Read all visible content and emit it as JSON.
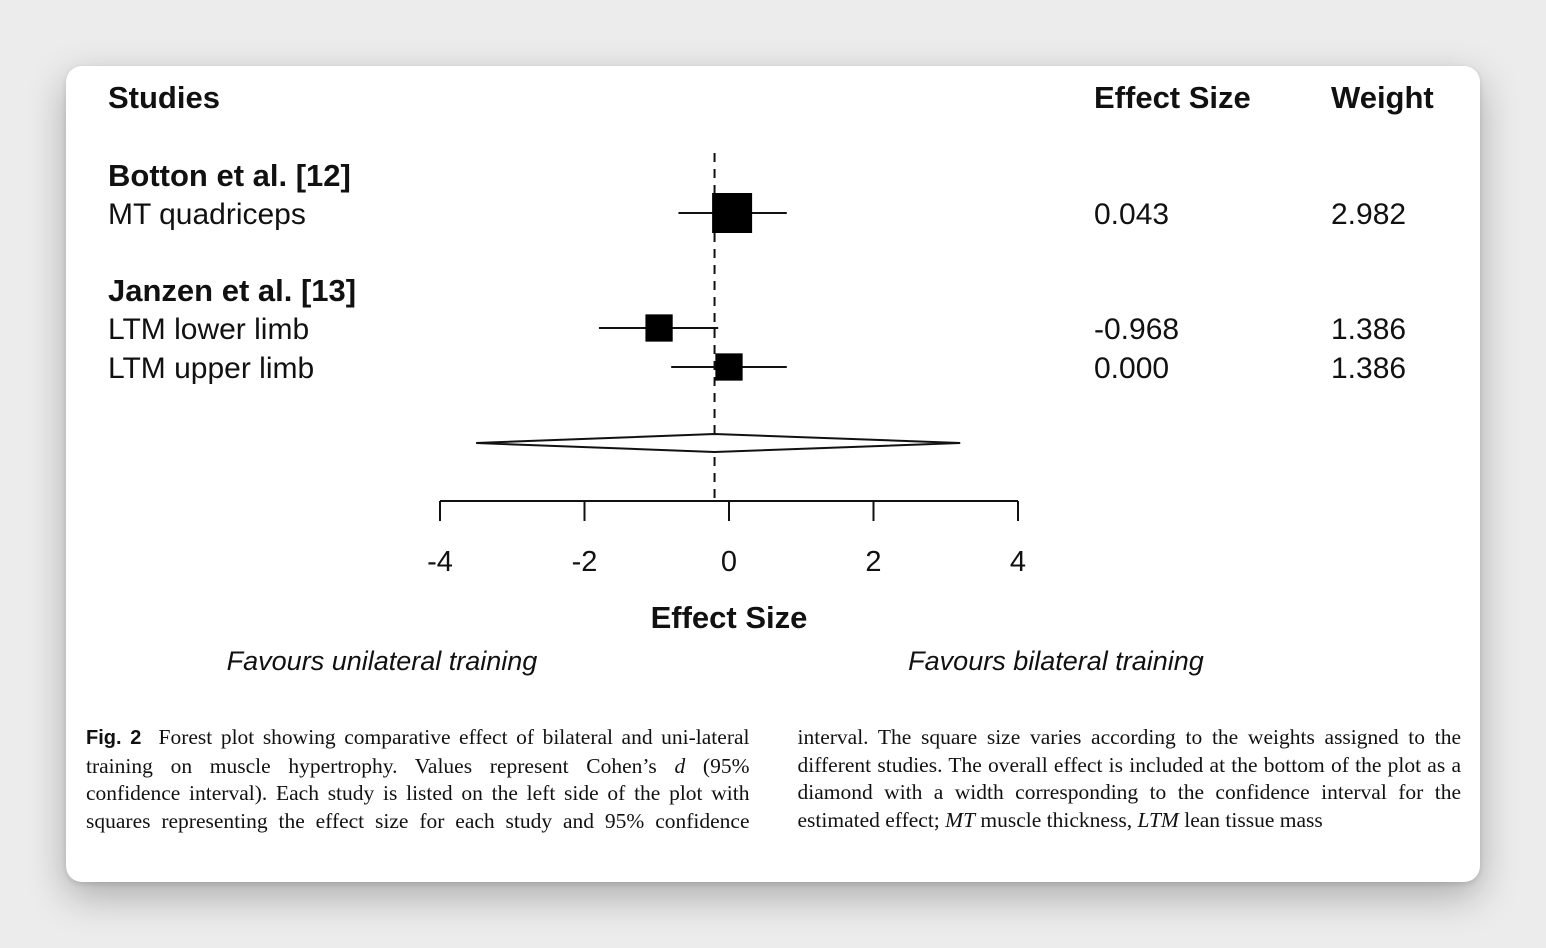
{
  "chart_data": {
    "type": "forest",
    "headers": {
      "studies": "Studies",
      "effect_size": "Effect Size",
      "weight": "Weight"
    },
    "null_line": 0,
    "xlim": [
      -4,
      4
    ],
    "xticks": [
      "-4",
      "-2",
      "0",
      "2",
      "4"
    ],
    "xlabel": "Effect Size",
    "favours_left": "Favours unilateral training",
    "favours_right": "Favours bilateral training",
    "studies": [
      {
        "name": "Botton et al. [12]",
        "outcomes": [
          {
            "label": "MT quadriceps",
            "effect": 0.043,
            "effect_text": "0.043",
            "ci": [
              -0.7,
              0.8
            ],
            "weight": 2.982,
            "weight_text": "2.982"
          }
        ]
      },
      {
        "name": "Janzen et al. [13]",
        "outcomes": [
          {
            "label": "LTM lower limb",
            "effect": -0.968,
            "effect_text": "-0.968",
            "ci": [
              -1.8,
              -0.15
            ],
            "weight": 1.386,
            "weight_text": "1.386"
          },
          {
            "label": "LTM upper limb",
            "effect": 0.0,
            "effect_text": "0.000",
            "ci": [
              -0.8,
              0.8
            ],
            "weight": 1.386,
            "weight_text": "1.386"
          }
        ]
      }
    ],
    "overall": {
      "effect": -0.2,
      "ci": [
        -3.5,
        3.2
      ]
    }
  },
  "caption": {
    "fig_label": "Fig. 2",
    "text_1": "Forest plot showing comparative effect of bilateral and uni‑lateral training on muscle hypertrophy. Values represent Cohen’s ",
    "d": "d",
    "text_2": " (95% confidence interval). Each study is listed on the left side of the plot with squares representing the effect size for each study and 95% confidence interval. The square size varies according to the weights assigned to the different studies. The overall effect is included at the bottom of the plot as a diamond with a width corresponding to the confidence interval for the estimated effect; ",
    "mt_abbr": "MT",
    "mt_text": " muscle thickness, ",
    "ltm_abbr": "LTM",
    "ltm_text": " lean tissue mass"
  }
}
